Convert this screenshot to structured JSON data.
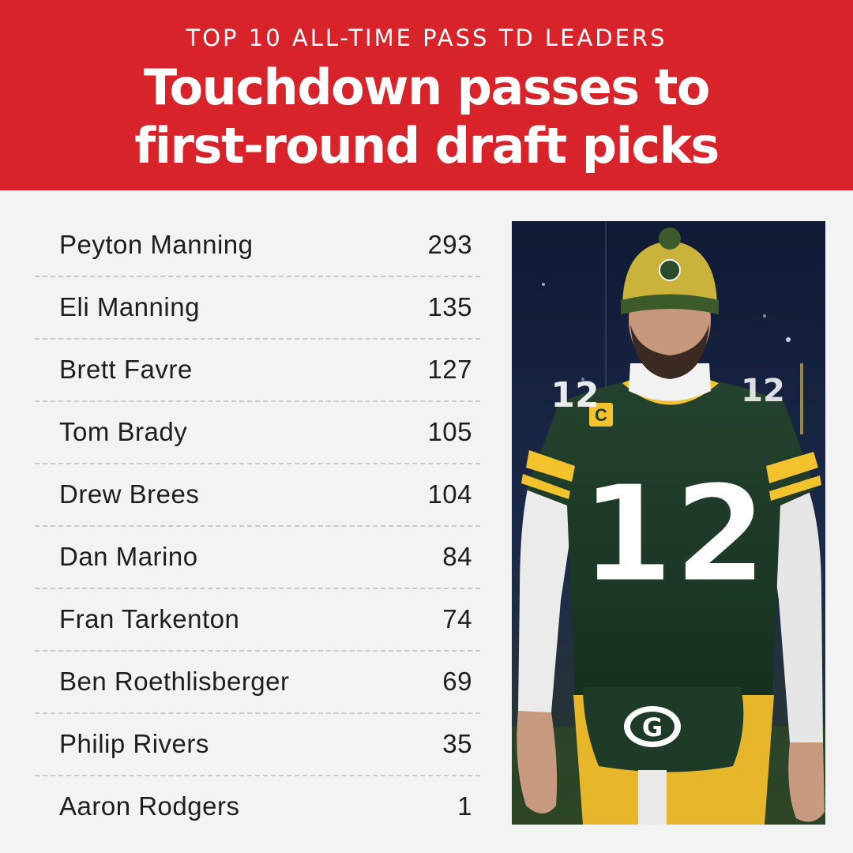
{
  "header": {
    "kicker": "TOP 10 ALL-TIME PASS TD LEADERS",
    "title_line1": "Touchdown passes to",
    "title_line2": "first-round draft picks"
  },
  "chart_data": {
    "type": "table",
    "title": "Touchdown passes to first-round draft picks",
    "subtitle": "TOP 10 ALL-TIME PASS TD LEADERS",
    "rows": [
      {
        "name": "Peyton Manning",
        "value": "293"
      },
      {
        "name": "Eli Manning",
        "value": "135"
      },
      {
        "name": "Brett Favre",
        "value": "127"
      },
      {
        "name": "Tom Brady",
        "value": "105"
      },
      {
        "name": "Drew Brees",
        "value": "104"
      },
      {
        "name": "Dan Marino",
        "value": "84"
      },
      {
        "name": "Fran Tarkenton",
        "value": "74"
      },
      {
        "name": "Ben Roethlisberger",
        "value": "69"
      },
      {
        "name": "Philip Rivers",
        "value": "35"
      },
      {
        "name": "Aaron Rodgers",
        "value": "1"
      }
    ]
  },
  "photo": {
    "jersey_number": "12",
    "captain_patch": "C",
    "logo_letter": "G"
  },
  "colors": {
    "header_bg": "#d9232b",
    "page_bg": "#f3f3f3",
    "text": "#1e1e1e",
    "divider": "#c9c9c9",
    "jersey_green": "#1f3b2a",
    "jersey_gold": "#f3c32e"
  }
}
